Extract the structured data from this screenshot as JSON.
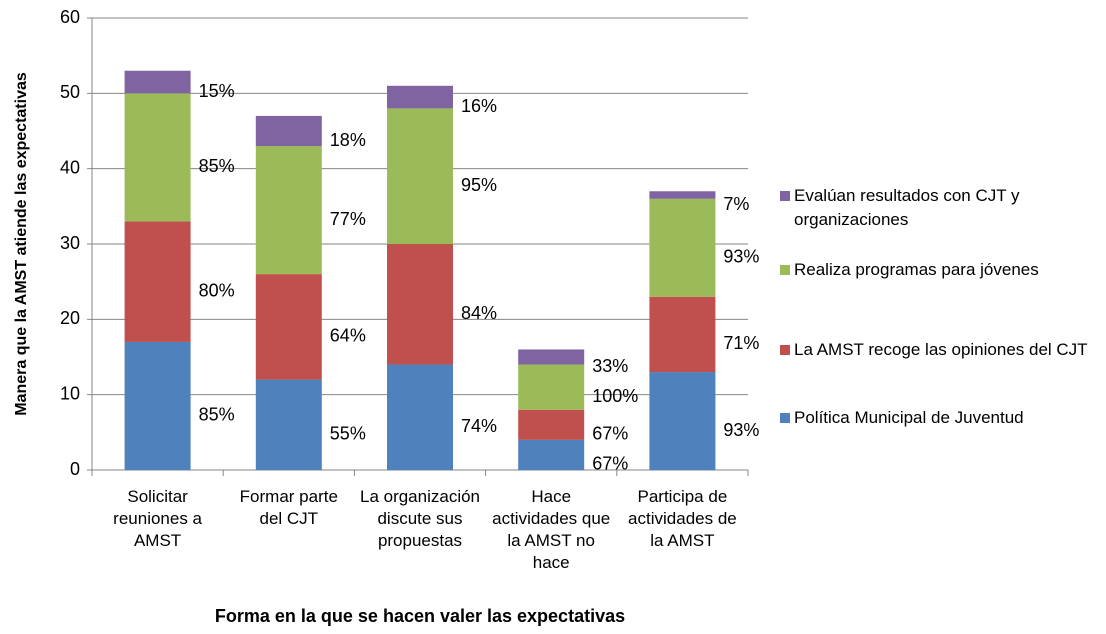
{
  "chart_data": {
    "type": "bar",
    "stacked": true,
    "x_label": "Forma en la que se hacen valer las expectativas",
    "y_label": "Manera que la AMST atiende las expectativas",
    "categories": [
      "Solicitar reuniones a AMST",
      "Formar parte del CJT",
      "La organización discute sus propuestas",
      "Hace actividades que la AMST no hace",
      "Participa de actividades de la AMST"
    ],
    "series": [
      {
        "name": "Política Municipal de Juventud",
        "color": "#4f81bd",
        "values": [
          17,
          12,
          14,
          4,
          13
        ],
        "labels": [
          "85%",
          "55%",
          "74%",
          "67%",
          "93%"
        ]
      },
      {
        "name": "La AMST recoge las opiniones del CJT",
        "color": "#c0504d",
        "values": [
          16,
          14,
          16,
          4,
          10
        ],
        "labels": [
          "80%",
          "64%",
          "84%",
          "67%",
          "71%"
        ]
      },
      {
        "name": "Realiza programas para jóvenes",
        "color": "#9bbb59",
        "values": [
          17,
          17,
          18,
          6,
          13
        ],
        "labels": [
          "85%",
          "77%",
          "95%",
          "100%",
          "93%"
        ]
      },
      {
        "name": "Evalúan resultados con CJT y organizaciones",
        "color": "#8064a2",
        "values": [
          3,
          4,
          3,
          2,
          1
        ],
        "labels": [
          "15%",
          "18%",
          "16%",
          "33%",
          "7%"
        ]
      }
    ],
    "ylim": [
      0,
      60
    ],
    "yticks": [
      0,
      10,
      20,
      30,
      40,
      50,
      60
    ],
    "grid": true
  }
}
